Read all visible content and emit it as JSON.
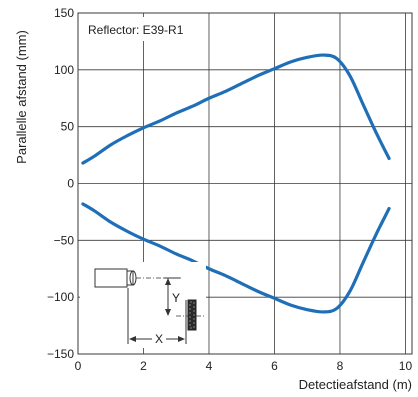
{
  "chart_data": {
    "type": "line",
    "title": "",
    "xlabel": "Detectieafstand (m)",
    "ylabel": "Parallelle afstand (mm)",
    "annotation": "Reflector: E39-R1",
    "xlim": [
      0,
      10.2
    ],
    "ylim": [
      -150,
      150
    ],
    "xticks": [
      "0",
      "2",
      "4",
      "6",
      "8",
      "10"
    ],
    "xtick_values": [
      0,
      2,
      4,
      6,
      8,
      10
    ],
    "yticks": [
      "150",
      "100",
      "50",
      "0",
      "−50",
      "−100",
      "−150"
    ],
    "ytick_values": [
      150,
      100,
      50,
      0,
      -50,
      -100,
      -150
    ],
    "grid": true,
    "line_color": "#1f6fb8",
    "series": [
      {
        "x": [
          0.15,
          0.5,
          1,
          1.5,
          2,
          2.5,
          3,
          3.5,
          4,
          4.5,
          5,
          5.5,
          6,
          6.5,
          7,
          7.5,
          7.9,
          8.3,
          8.7,
          9.1,
          9.5
        ],
        "y": [
          18,
          24,
          34,
          42,
          49,
          55,
          62,
          68,
          75,
          81,
          88,
          95,
          101,
          107,
          111,
          113,
          110,
          95,
          70,
          45,
          22
        ]
      },
      {
        "x": [
          0.15,
          0.5,
          1,
          1.5,
          2,
          2.5,
          3,
          3.5,
          4,
          4.5,
          5,
          5.5,
          6,
          6.5,
          7,
          7.5,
          7.9,
          8.3,
          8.7,
          9.1,
          9.5
        ],
        "y": [
          -18,
          -24,
          -34,
          -42,
          -49,
          -55,
          -62,
          -68,
          -75,
          -81,
          -88,
          -95,
          -101,
          -107,
          -111,
          -113,
          -110,
          -95,
          -70,
          -45,
          -22
        ]
      }
    ],
    "diagram_labels": {
      "x": "X",
      "y": "Y"
    }
  }
}
